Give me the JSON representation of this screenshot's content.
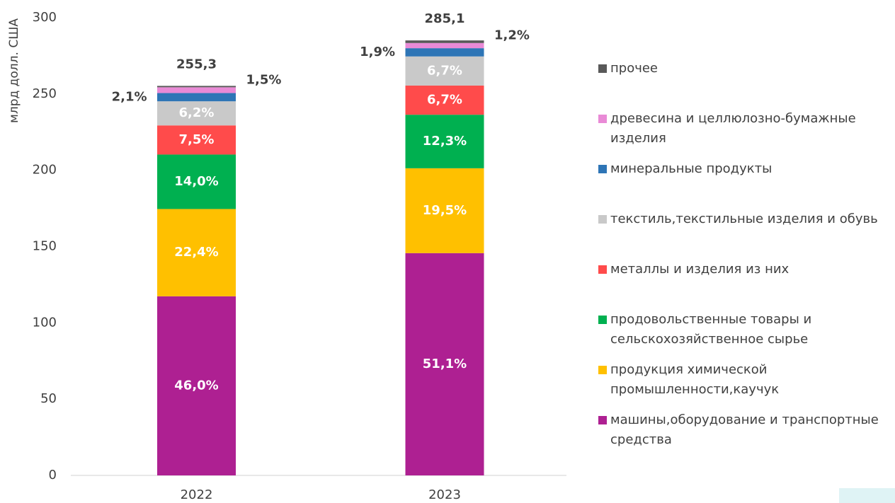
{
  "chart_data": {
    "type": "stacked_bar",
    "y_label": "млрд долл. США",
    "categories": [
      "2022",
      "2023"
    ],
    "ylim": [
      0,
      300
    ],
    "yticks": [
      0,
      50,
      100,
      150,
      200,
      250,
      300
    ],
    "totals": [
      255.3,
      285.1
    ],
    "total_labels": [
      "255,3",
      "285,1"
    ],
    "series": [
      {
        "name": "машины,оборудование и транспортные средства",
        "color": "#ae2092",
        "values": [
          117.4,
          145.7
        ],
        "shares": [
          46.0,
          51.1
        ],
        "share_labels": [
          "46,0%",
          "51,1%"
        ]
      },
      {
        "name": "продукция химической промышленности,каучук",
        "color": "#ffc000",
        "values": [
          57.2,
          55.6
        ],
        "shares": [
          22.4,
          19.5
        ],
        "share_labels": [
          "22,4%",
          "19,5%"
        ]
      },
      {
        "name": "продовольственные товары и сельскохозяйственное сырье",
        "color": "#00b050",
        "values": [
          35.7,
          35.1
        ],
        "shares": [
          14.0,
          12.3
        ],
        "share_labels": [
          "14,0%",
          "12,3%"
        ]
      },
      {
        "name": "металлы и изделия из них",
        "color": "#ff4b4b",
        "values": [
          19.1,
          19.1
        ],
        "shares": [
          7.5,
          6.7
        ],
        "share_labels": [
          "7,5%",
          "6,7%"
        ]
      },
      {
        "name": "текстиль,текстильные изделия и обувь",
        "color": "#c9c9c9",
        "values": [
          15.8,
          19.1
        ],
        "shares": [
          6.2,
          6.7
        ],
        "share_labels": [
          "6,2%",
          "6,7%"
        ]
      },
      {
        "name": "минеральные продукты",
        "color": "#2e75b6",
        "values": [
          5.4,
          5.4
        ],
        "shares": [
          2.1,
          1.9
        ],
        "share_labels": [
          "2,1%",
          "1,9%"
        ]
      },
      {
        "name": "древесина и целлюлозно-бумажные изделия",
        "color": "#e98ad6",
        "values": [
          3.8,
          3.4
        ],
        "shares": [
          1.5,
          1.2
        ],
        "share_labels": [
          "1,5%",
          "1,2%"
        ]
      },
      {
        "name": "прочее",
        "color": "#595959",
        "values": [
          0.9,
          1.7
        ]
      }
    ]
  }
}
